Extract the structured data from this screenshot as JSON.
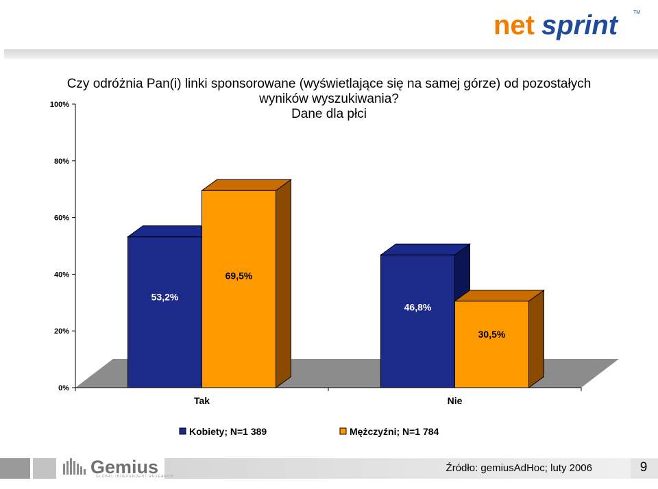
{
  "brand": {
    "logo_text_net": "net",
    "logo_text_sprint": "sprint",
    "logo_tm": "TM",
    "footer_logo": "Gemius",
    "footer_logo_sub": "GLOBAL INDEPENDENT RESEARCH"
  },
  "title_lines": [
    "Czy odróżnia Pan(i) linki sponsorowane (wyświetlające się na samej górze) od pozostałych",
    "wyników wyszukiwania?",
    "Dane dla płci"
  ],
  "footer": {
    "source": "Źródło: gemiusAdHoc; luty 2006",
    "page_number": "9"
  },
  "colors": {
    "kobiety": "#1a2a8c",
    "mezczyzni": "#ff9900",
    "netsprint_orange": "#f07d00",
    "netsprint_blue": "#1f4b9b"
  },
  "chart_data": {
    "type": "bar",
    "categories": [
      "Tak",
      "Nie"
    ],
    "series": [
      {
        "name": "Kobiety; N=1 389",
        "values": [
          53.2,
          46.8
        ],
        "labels": [
          "53,2%",
          "46,8%"
        ],
        "color": "#1a2a8c"
      },
      {
        "name": "Mężczyźni; N=1 784",
        "values": [
          69.5,
          30.5
        ],
        "labels": [
          "69,5%",
          "30,5%"
        ],
        "color": "#ff9900"
      }
    ],
    "yticks": [
      "0%",
      "20%",
      "40%",
      "60%",
      "80%",
      "100%"
    ],
    "ylim": [
      0,
      100
    ],
    "legend_position": "bottom",
    "style": "3d"
  }
}
